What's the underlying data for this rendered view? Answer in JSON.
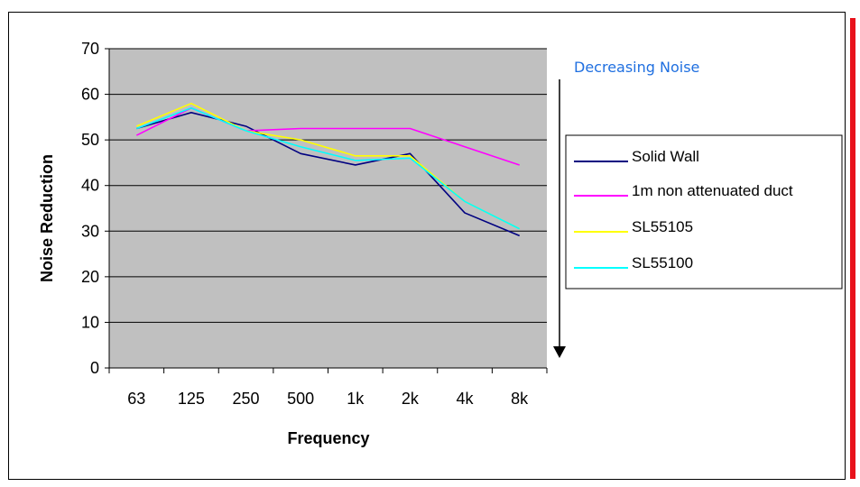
{
  "chart_data": {
    "type": "line",
    "title": "",
    "xlabel": "Frequency",
    "ylabel": "Noise Reduction",
    "categories": [
      "63",
      "125",
      "250",
      "500",
      "1k",
      "2k",
      "4k",
      "8k"
    ],
    "ylim": [
      0,
      70
    ],
    "yticks": [
      0,
      10,
      20,
      30,
      40,
      50,
      60,
      70
    ],
    "grid": "horizontal",
    "plot_background": "#c0c0c0",
    "legend_position": "right",
    "annotation": "Decreasing Noise",
    "annotation_color": "#1f6fe0",
    "series": [
      {
        "name": "Solid Wall",
        "color": "#000080",
        "values": [
          52.5,
          56,
          53,
          47,
          44.5,
          47,
          34,
          29
        ]
      },
      {
        "name": "1m non attenuated duct",
        "color": "#ff00ff",
        "values": [
          51,
          57,
          52,
          52.5,
          52.5,
          52.5,
          48.5,
          44.5
        ]
      },
      {
        "name": "SL55105",
        "color": "#ffff00",
        "values": [
          53,
          58,
          52,
          50,
          46.5,
          46.5,
          36.5,
          30.5
        ]
      },
      {
        "name": "SL55100",
        "color": "#00ffff",
        "values": [
          52.5,
          57,
          52,
          48.5,
          45.5,
          46,
          36.5,
          30.5
        ]
      }
    ]
  }
}
